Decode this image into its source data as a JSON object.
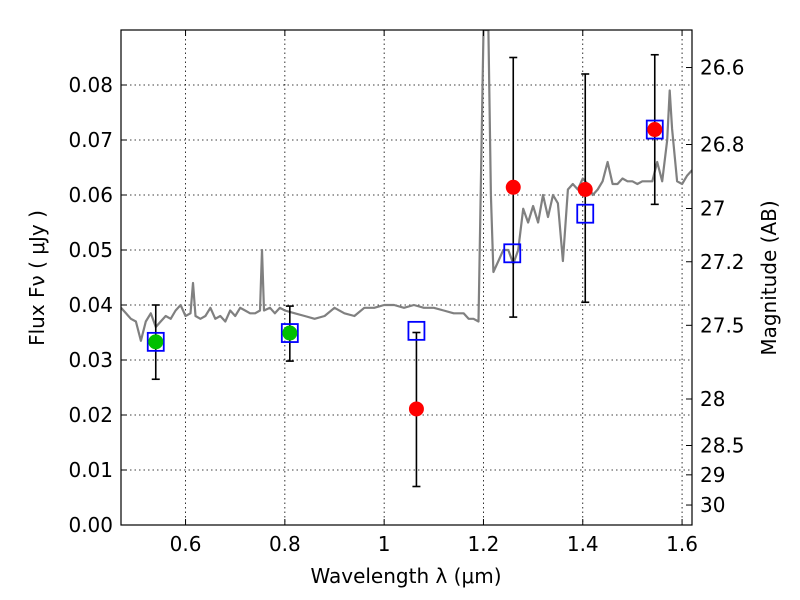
{
  "chart_data": {
    "type": "scatter",
    "xlabel": "Wavelength  λ (μm)",
    "ylabel": "Flux  Fν  ( μJy )",
    "y2label": "Magnitude (AB)",
    "xlim": [
      0.47,
      1.62
    ],
    "ylim": [
      0.0,
      0.09
    ],
    "xticks": [
      0.6,
      0.8,
      1.0,
      1.2,
      1.4,
      1.6
    ],
    "xtick_labels": [
      "0.6",
      "0.8",
      "1",
      "1.2",
      "1.4",
      "1.6"
    ],
    "yticks": [
      0.0,
      0.01,
      0.02,
      0.03,
      0.04,
      0.05,
      0.06,
      0.07,
      0.08
    ],
    "ytick_labels": [
      "0.00",
      "0.01",
      "0.02",
      "0.03",
      "0.04",
      "0.05",
      "0.06",
      "0.07",
      "0.08"
    ],
    "y2ticks": [
      26.6,
      26.8,
      27.0,
      27.2,
      27.5,
      28.0,
      28.5,
      29.0,
      30.0
    ],
    "y2tick_labels": [
      "26.6",
      "26.8",
      "27",
      "27.2",
      "27.5",
      "28",
      "28.5",
      "29",
      "30"
    ],
    "grid": true,
    "colors": {
      "model": "#808080",
      "observed_green": "#00c000",
      "observed_red": "#ff0000",
      "model_photometry": "#0000ff",
      "errorbar": "#000000"
    },
    "model_spectrum": {
      "x": [
        0.47,
        0.48,
        0.49,
        0.5,
        0.51,
        0.52,
        0.53,
        0.54,
        0.55,
        0.56,
        0.57,
        0.58,
        0.59,
        0.6,
        0.61,
        0.615,
        0.62,
        0.63,
        0.64,
        0.65,
        0.66,
        0.67,
        0.68,
        0.69,
        0.7,
        0.71,
        0.72,
        0.73,
        0.74,
        0.75,
        0.754,
        0.758,
        0.77,
        0.78,
        0.79,
        0.8,
        0.82,
        0.84,
        0.86,
        0.88,
        0.9,
        0.92,
        0.94,
        0.96,
        0.98,
        1.0,
        1.02,
        1.04,
        1.06,
        1.08,
        1.1,
        1.12,
        1.14,
        1.16,
        1.17,
        1.18,
        1.19,
        1.2,
        1.205,
        1.21,
        1.215,
        1.22,
        1.23,
        1.24,
        1.25,
        1.26,
        1.27,
        1.28,
        1.29,
        1.3,
        1.31,
        1.32,
        1.33,
        1.34,
        1.35,
        1.36,
        1.37,
        1.38,
        1.39,
        1.4,
        1.41,
        1.42,
        1.43,
        1.44,
        1.45,
        1.46,
        1.47,
        1.48,
        1.49,
        1.5,
        1.51,
        1.52,
        1.53,
        1.54,
        1.55,
        1.56,
        1.57,
        1.575,
        1.58,
        1.59,
        1.6,
        1.61,
        1.62
      ],
      "y": [
        0.0395,
        0.0385,
        0.0375,
        0.037,
        0.0335,
        0.037,
        0.0385,
        0.036,
        0.037,
        0.038,
        0.0375,
        0.039,
        0.04,
        0.038,
        0.0385,
        0.044,
        0.038,
        0.0375,
        0.038,
        0.0395,
        0.0375,
        0.038,
        0.037,
        0.039,
        0.038,
        0.0395,
        0.039,
        0.0385,
        0.0385,
        0.039,
        0.05,
        0.039,
        0.0395,
        0.0385,
        0.0395,
        0.039,
        0.0385,
        0.038,
        0.0375,
        0.038,
        0.0395,
        0.0385,
        0.038,
        0.0395,
        0.0395,
        0.04,
        0.04,
        0.0395,
        0.04,
        0.0395,
        0.0395,
        0.039,
        0.0385,
        0.0385,
        0.0375,
        0.0375,
        0.037,
        0.09,
        0.09,
        0.09,
        0.06,
        0.046,
        0.048,
        0.05,
        0.05,
        0.0475,
        0.05,
        0.0575,
        0.055,
        0.058,
        0.055,
        0.06,
        0.056,
        0.06,
        0.0585,
        0.048,
        0.061,
        0.062,
        0.061,
        0.063,
        0.062,
        0.06,
        0.061,
        0.0625,
        0.066,
        0.062,
        0.062,
        0.063,
        0.0625,
        0.0625,
        0.062,
        0.0625,
        0.0625,
        0.0625,
        0.066,
        0.0625,
        0.07,
        0.079,
        0.072,
        0.0625,
        0.062,
        0.0635,
        0.0645
      ]
    },
    "observed_points": [
      {
        "x": 0.54,
        "y": 0.0333,
        "err_lo": 0.0265,
        "err_hi": 0.04,
        "color": "green"
      },
      {
        "x": 0.81,
        "y": 0.0349,
        "err_lo": 0.0298,
        "err_hi": 0.0398,
        "color": "green"
      },
      {
        "x": 1.065,
        "y": 0.0211,
        "err_lo": 0.007,
        "err_hi": 0.035,
        "color": "red"
      },
      {
        "x": 1.26,
        "y": 0.0614,
        "err_lo": 0.0378,
        "err_hi": 0.085,
        "color": "red"
      },
      {
        "x": 1.405,
        "y": 0.061,
        "err_lo": 0.0405,
        "err_hi": 0.082,
        "color": "red"
      },
      {
        "x": 1.545,
        "y": 0.0719,
        "err_lo": 0.0583,
        "err_hi": 0.0855,
        "color": "red"
      }
    ],
    "model_photometry": [
      {
        "x": 0.54,
        "y": 0.0333
      },
      {
        "x": 0.81,
        "y": 0.0349
      },
      {
        "x": 1.065,
        "y": 0.0353
      },
      {
        "x": 1.258,
        "y": 0.0494
      },
      {
        "x": 1.405,
        "y": 0.0566
      },
      {
        "x": 1.545,
        "y": 0.0719
      }
    ]
  }
}
